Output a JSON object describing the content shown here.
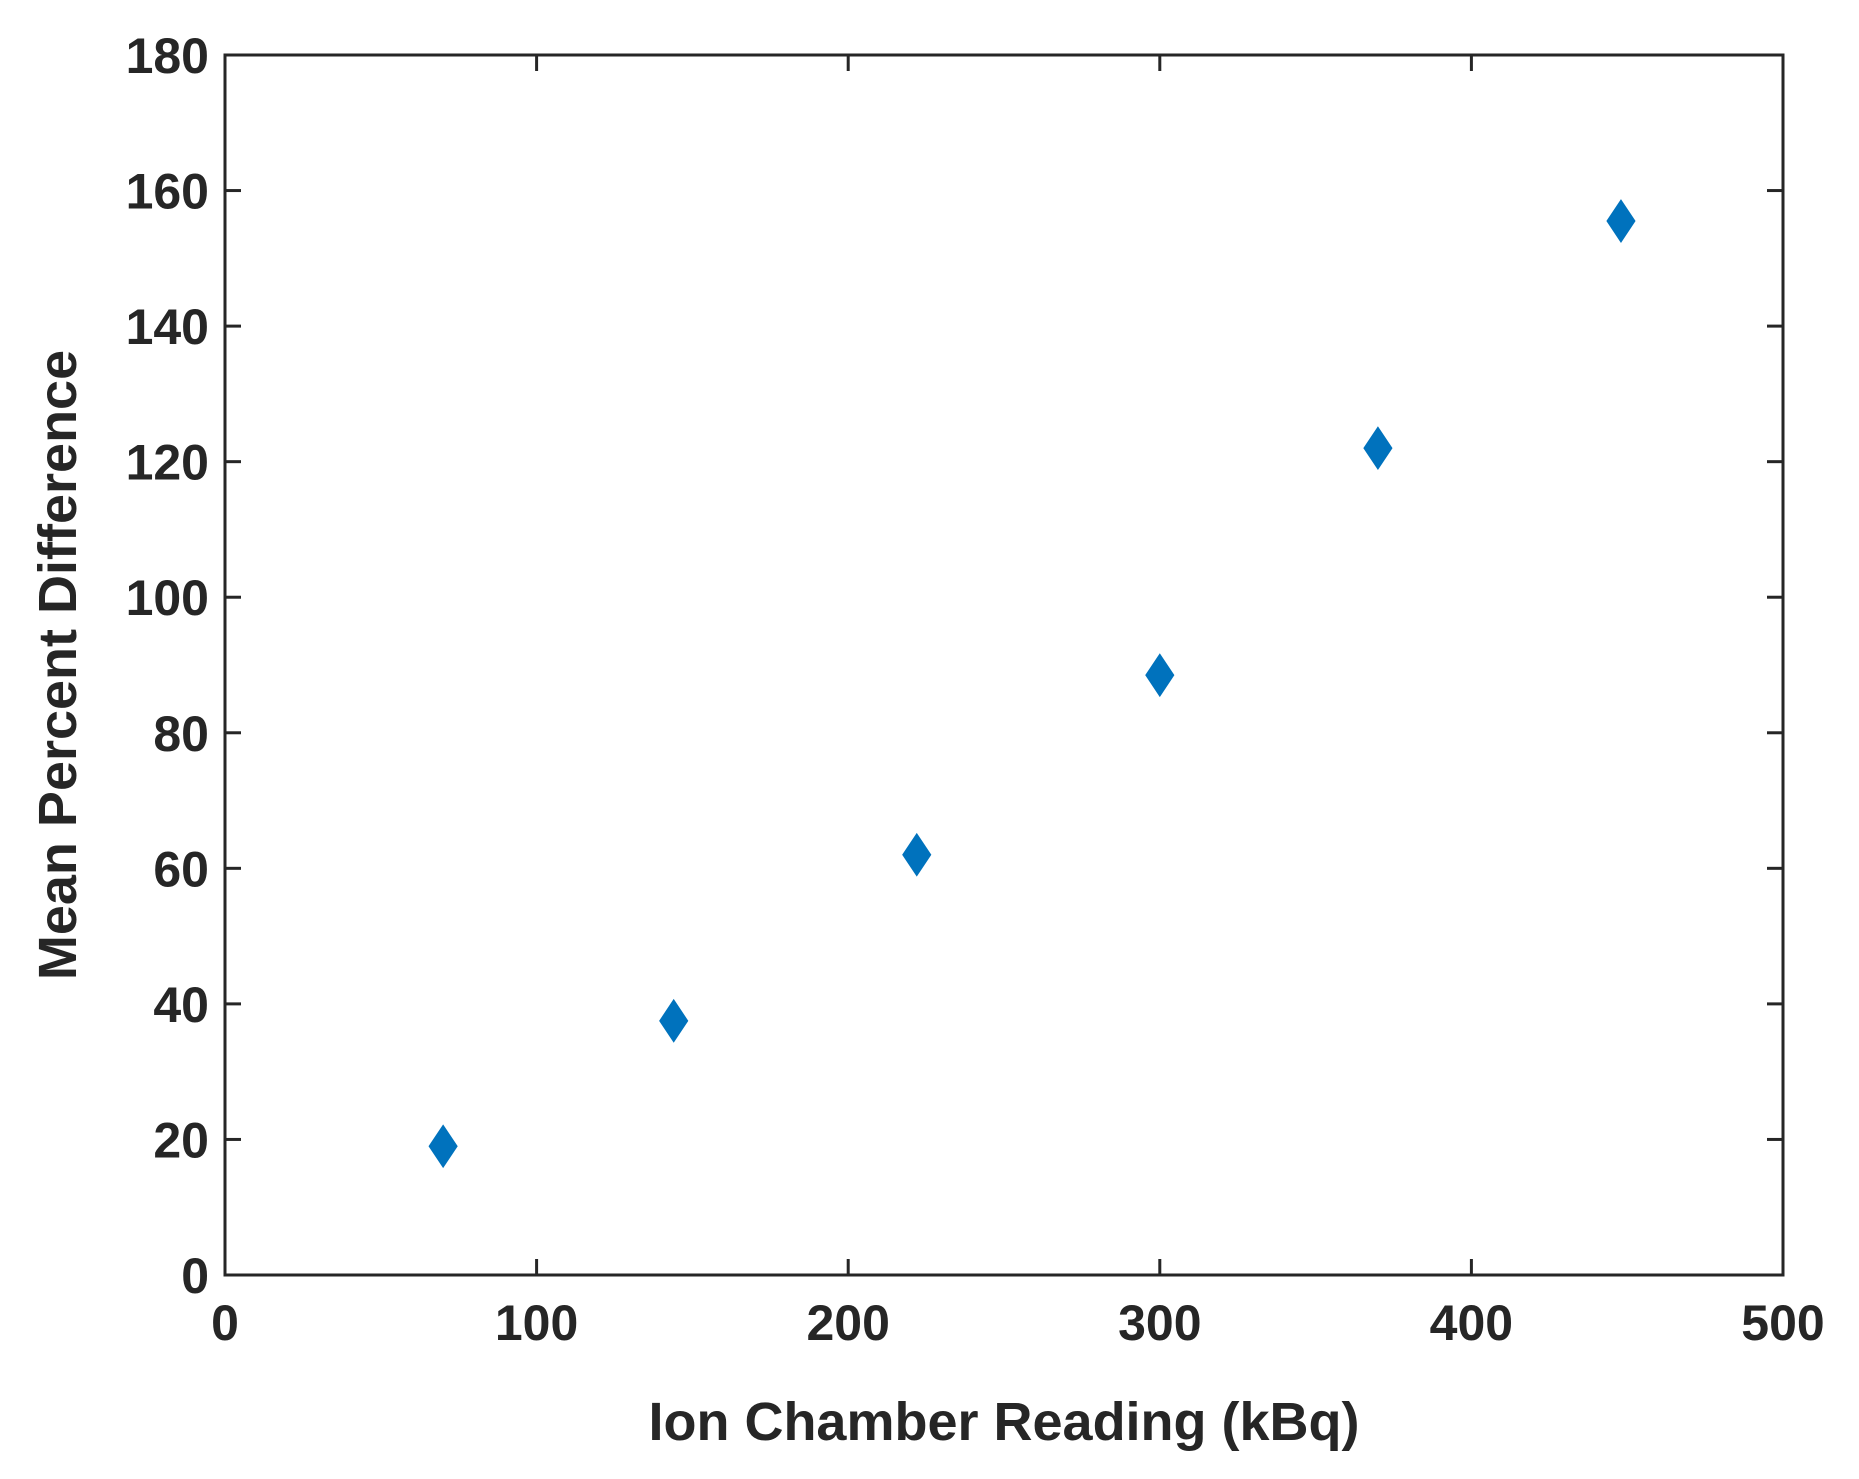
{
  "chart_data": {
    "type": "scatter",
    "title": "",
    "xlabel": "Ion Chamber Reading (kBq)",
    "ylabel": "Mean Percent Difference",
    "xlim": [
      0,
      500
    ],
    "ylim": [
      0,
      180
    ],
    "xticks": [
      0,
      100,
      200,
      300,
      400,
      500
    ],
    "yticks": [
      0,
      20,
      40,
      60,
      80,
      100,
      120,
      140,
      160,
      180
    ],
    "xtick_labels": [
      "0",
      "100",
      "200",
      "300",
      "400",
      "500"
    ],
    "ytick_labels": [
      "0",
      "20",
      "40",
      "60",
      "80",
      "100",
      "120",
      "140",
      "160",
      "180"
    ],
    "grid": false,
    "marker": "diamond",
    "marker_color": "#0072BD",
    "series": [
      {
        "x": [
          70,
          144,
          222,
          300,
          370,
          448
        ],
        "y": [
          19,
          37.5,
          62,
          88.5,
          122,
          155.5
        ]
      }
    ]
  }
}
